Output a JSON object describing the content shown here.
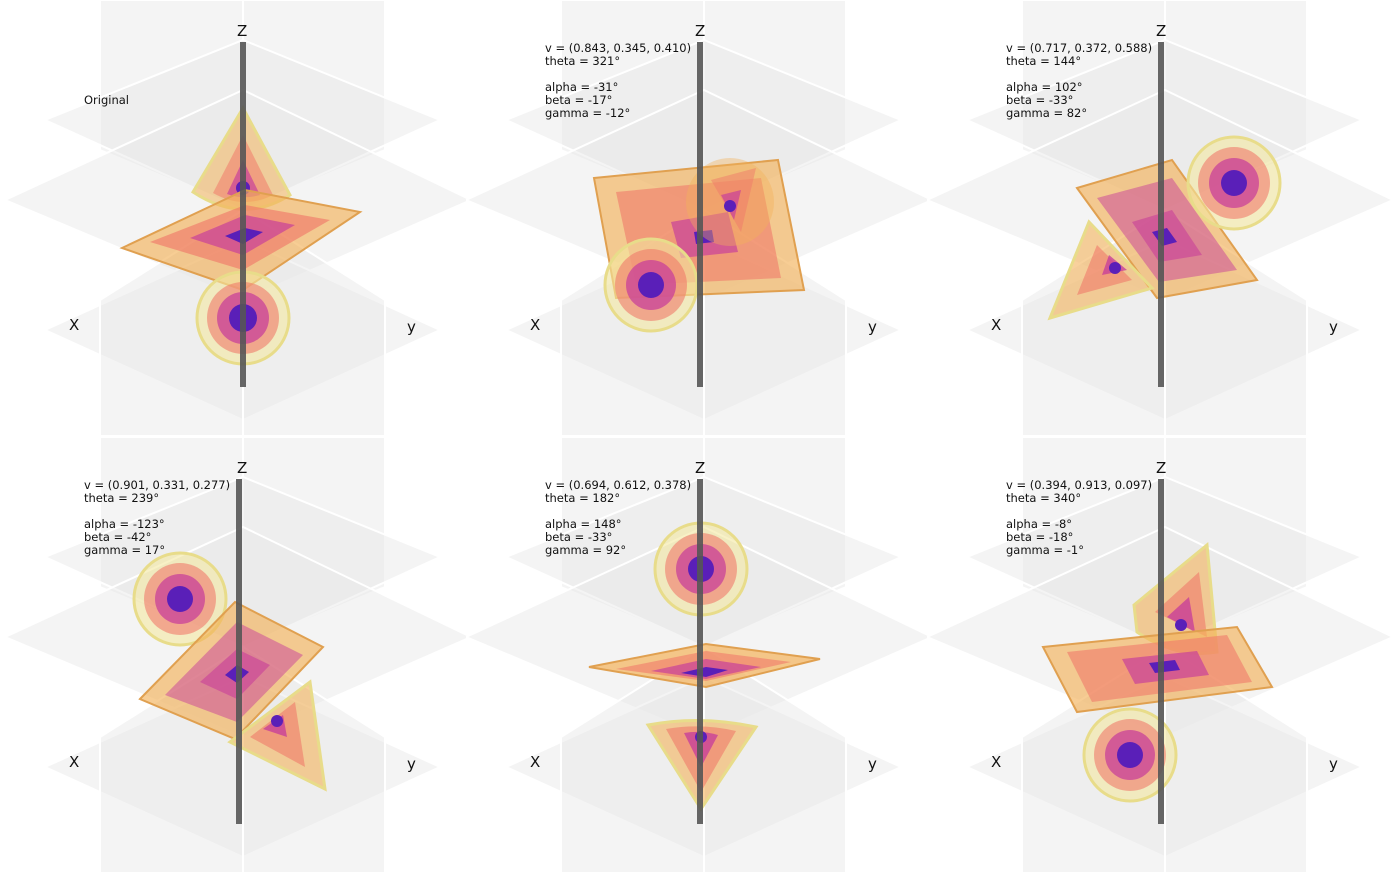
{
  "axes": {
    "x": "X",
    "y": "y",
    "z": "Z"
  },
  "colors": {
    "background": "#ffffff",
    "pane": "#e6e6e6",
    "axis_rod": "#555555",
    "outer": "#f3b25a",
    "mid": "#f07a6a",
    "inner": "#c8409a",
    "core": "#5a1fb8",
    "rim": "#e8dc8a"
  },
  "panels": [
    {
      "name": "original",
      "title": "Original",
      "v": "",
      "theta": "",
      "alpha": "",
      "beta": "",
      "gamma": ""
    },
    {
      "name": "rot1",
      "title": "",
      "v": "v = (0.843, 0.345, 0.410)",
      "theta": "theta = 321°",
      "alpha": "alpha = -31°",
      "beta": "beta = -17°",
      "gamma": "gamma = -12°"
    },
    {
      "name": "rot2",
      "title": "",
      "v": "v = (0.717, 0.372, 0.588)",
      "theta": "theta = 144°",
      "alpha": "alpha = 102°",
      "beta": "beta = -33°",
      "gamma": "gamma = 82°"
    },
    {
      "name": "rot3",
      "title": "",
      "v": "v = (0.901, 0.331, 0.277)",
      "theta": "theta = 239°",
      "alpha": "alpha = -123°",
      "beta": "beta = -42°",
      "gamma": "gamma = 17°"
    },
    {
      "name": "rot4",
      "title": "",
      "v": "v = (0.694, 0.612, 0.378)",
      "theta": "theta = 182°",
      "alpha": "alpha = 148°",
      "beta": "beta = -33°",
      "gamma": "gamma = 92°"
    },
    {
      "name": "rot5",
      "title": "",
      "v": "v = (0.394, 0.913, 0.097)",
      "theta": "theta = 340°",
      "alpha": "alpha = -8°",
      "beta": "beta = -18°",
      "gamma": "gamma = -1°"
    }
  ]
}
